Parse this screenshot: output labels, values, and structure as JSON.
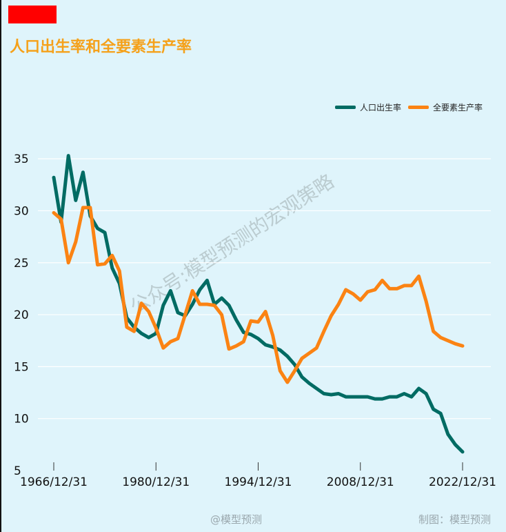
{
  "header": {
    "title": "人口出生率和全要素生产率"
  },
  "legend": {
    "birth_label": "人口出生率",
    "tfp_label": "全要素生产率"
  },
  "colors": {
    "birth": "#006b63",
    "tfp": "#fb8313",
    "title": "#f5a11a",
    "brand_block": "#ff0000"
  },
  "footer": {
    "weibo": "@模型预测",
    "source": "制图：模型预测"
  },
  "watermark": {
    "text": "公众号:模型预测的宏观策略"
  },
  "chart_data": {
    "type": "line",
    "title": "人口出生率和全要素生产率",
    "xlabel": "",
    "ylabel": "",
    "ylim": [
      5,
      37
    ],
    "yticks": [
      5,
      10,
      15,
      20,
      25,
      30,
      35
    ],
    "xticks": [
      "1966/12/31",
      "1980/12/31",
      "1994/12/31",
      "2008/12/31",
      "2022/12/31"
    ],
    "x_range": [
      "1966/12/31",
      "2022/12/31"
    ],
    "grid": true,
    "legend_position": "top-right",
    "series": [
      {
        "name": "人口出生率",
        "x": [
          1966,
          1967,
          1968,
          1969,
          1970,
          1971,
          1972,
          1973,
          1974,
          1975,
          1976,
          1977,
          1978,
          1979,
          1980,
          1981,
          1982,
          1983,
          1984,
          1985,
          1986,
          1987,
          1988,
          1989,
          1990,
          1991,
          1992,
          1993,
          1994,
          1995,
          1996,
          1997,
          1998,
          1999,
          2000,
          2001,
          2002,
          2003,
          2004,
          2005,
          2006,
          2007,
          2008,
          2009,
          2010,
          2011,
          2012,
          2013,
          2014,
          2015,
          2016,
          2017,
          2018,
          2019,
          2020,
          2021,
          2022
        ],
        "values": [
          33.2,
          28.9,
          35.3,
          31.0,
          33.7,
          29.5,
          28.3,
          27.9,
          24.5,
          23.0,
          19.7,
          18.8,
          18.2,
          17.8,
          18.2,
          20.9,
          22.3,
          20.2,
          19.9,
          21.0,
          22.4,
          23.3,
          21.0,
          21.6,
          20.9,
          19.5,
          18.3,
          18.1,
          17.7,
          17.1,
          16.9,
          16.6,
          16.0,
          15.2,
          14.0,
          13.4,
          12.9,
          12.4,
          12.3,
          12.4,
          12.1,
          12.1,
          12.1,
          12.1,
          11.9,
          11.9,
          12.1,
          12.1,
          12.4,
          12.1,
          12.9,
          12.4,
          10.9,
          10.5,
          8.5,
          7.5,
          6.8
        ]
      },
      {
        "name": "全要素生产率",
        "x": [
          1966,
          1967,
          1968,
          1969,
          1970,
          1971,
          1972,
          1973,
          1974,
          1975,
          1976,
          1977,
          1978,
          1979,
          1980,
          1981,
          1982,
          1983,
          1984,
          1985,
          1986,
          1987,
          1988,
          1989,
          1990,
          1991,
          1992,
          1993,
          1994,
          1995,
          1996,
          1997,
          1998,
          1999,
          2000,
          2001,
          2002,
          2003,
          2004,
          2005,
          2006,
          2007,
          2008,
          2009,
          2010,
          2011,
          2012,
          2013,
          2014,
          2015,
          2016,
          2017,
          2018,
          2019,
          2020,
          2021,
          2022
        ],
        "values": [
          29.8,
          29.2,
          25.0,
          27.0,
          30.3,
          30.3,
          24.8,
          24.9,
          25.7,
          24.2,
          18.8,
          18.4,
          21.1,
          20.3,
          18.7,
          16.8,
          17.4,
          17.7,
          20.0,
          22.3,
          21.0,
          21.0,
          20.9,
          20.0,
          16.7,
          17.0,
          17.4,
          19.4,
          19.3,
          20.3,
          18.0,
          14.6,
          13.5,
          14.6,
          15.8,
          16.3,
          16.8,
          18.4,
          19.9,
          21.0,
          22.4,
          22.0,
          21.4,
          22.2,
          22.4,
          23.3,
          22.5,
          22.5,
          22.8,
          22.8,
          23.7,
          21.3,
          18.4,
          17.8,
          17.5,
          17.2,
          17.0
        ]
      }
    ]
  }
}
